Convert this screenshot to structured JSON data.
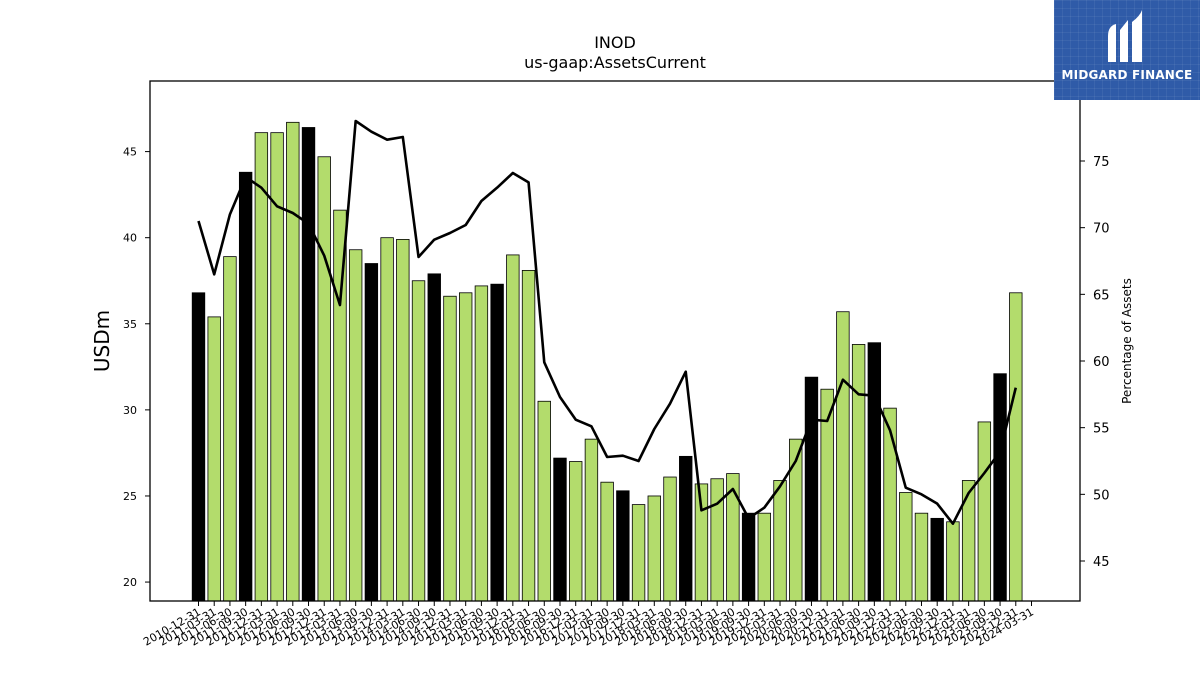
{
  "chart_data": {
    "type": "bar",
    "title": "INOD",
    "subtitle": "us-gaap:AssetsCurrent",
    "ylabel": "USDm",
    "y2label": "Percentage of Assets",
    "ylim": [
      18.9,
      49.1
    ],
    "y2lim": [
      42.0,
      81.0
    ],
    "yticks": [
      20,
      25,
      30,
      35,
      40,
      45
    ],
    "y2ticks": [
      45,
      50,
      55,
      60,
      65,
      70,
      75
    ],
    "categories": [
      "2010-12-31",
      "2011-03-31",
      "2011-06-30",
      "2011-09-30",
      "2011-12-31",
      "2012-03-31",
      "2012-06-30",
      "2012-09-30",
      "2012-12-31",
      "2013-03-31",
      "2013-06-30",
      "2013-09-30",
      "2013-12-31",
      "2014-03-31",
      "2014-06-30",
      "2014-09-30",
      "2014-12-31",
      "2015-03-31",
      "2015-06-30",
      "2015-09-30",
      "2015-12-31",
      "2016-03-31",
      "2016-06-30",
      "2016-09-30",
      "2016-12-31",
      "2017-03-31",
      "2017-06-30",
      "2017-09-30",
      "2017-12-31",
      "2018-03-31",
      "2018-06-30",
      "2018-09-30",
      "2018-12-31",
      "2019-03-31",
      "2019-06-30",
      "2019-09-30",
      "2019-12-31",
      "2020-03-31",
      "2020-06-30",
      "2020-09-30",
      "2020-12-31",
      "2021-03-31",
      "2021-06-30",
      "2021-09-30",
      "2021-12-31",
      "2022-03-31",
      "2022-06-30",
      "2022-09-30",
      "2022-12-31",
      "2023-03-31",
      "2023-06-30",
      "2023-09-30",
      "2023-12-31",
      "2024-03-31"
    ],
    "series": [
      {
        "kind": "bar",
        "axis": "left",
        "values": [
          36.8,
          35.4,
          38.9,
          43.8,
          46.1,
          46.1,
          46.7,
          46.4,
          44.7,
          41.6,
          39.3,
          38.5,
          40.0,
          39.9,
          37.5,
          37.9,
          36.6,
          36.8,
          37.2,
          37.3,
          39.0,
          38.1,
          30.5,
          27.2,
          27.0,
          28.3,
          25.8,
          25.3,
          24.5,
          25.0,
          26.1,
          27.3,
          25.7,
          26.0,
          26.3,
          24.0,
          24.0,
          25.9,
          28.3,
          31.9,
          31.2,
          35.7,
          33.8,
          33.9,
          30.1,
          25.2,
          24.0,
          23.7,
          23.5,
          25.9,
          29.3,
          32.1,
          36.8,
          null
        ],
        "highlight": [
          true,
          false,
          false,
          true,
          false,
          false,
          false,
          true,
          false,
          false,
          false,
          true,
          false,
          false,
          false,
          true,
          false,
          false,
          false,
          true,
          false,
          false,
          false,
          true,
          false,
          false,
          false,
          true,
          false,
          false,
          false,
          true,
          false,
          false,
          false,
          true,
          false,
          false,
          false,
          true,
          false,
          false,
          false,
          true,
          false,
          false,
          false,
          true,
          false,
          false,
          false,
          true,
          false,
          false
        ]
      },
      {
        "kind": "line",
        "axis": "right",
        "values": [
          70.5,
          66.5,
          71.0,
          73.8,
          73.0,
          71.6,
          71.1,
          70.3,
          67.9,
          64.2,
          78.0,
          77.2,
          76.6,
          76.8,
          67.8,
          69.1,
          69.6,
          70.2,
          72.0,
          73.0,
          74.1,
          73.4,
          59.9,
          57.3,
          55.6,
          55.1,
          52.8,
          52.9,
          52.5,
          54.9,
          56.8,
          59.2,
          48.8,
          49.3,
          50.4,
          48.2,
          49.0,
          50.6,
          52.5,
          55.6,
          55.5,
          58.6,
          57.5,
          57.4,
          54.8,
          50.5,
          50.0,
          49.3,
          47.8,
          50.1,
          51.6,
          53.2,
          58.0,
          null
        ]
      }
    ],
    "colors": {
      "bar_fill": "#b3dc6c",
      "bar_highlight_fill": "#000000",
      "bar_edge": "#000000",
      "line": "#000000"
    }
  },
  "logo": {
    "text": "MIDGARD FINANCE",
    "background": "#2f5ba8",
    "icon": "midgard-logo-icon"
  }
}
